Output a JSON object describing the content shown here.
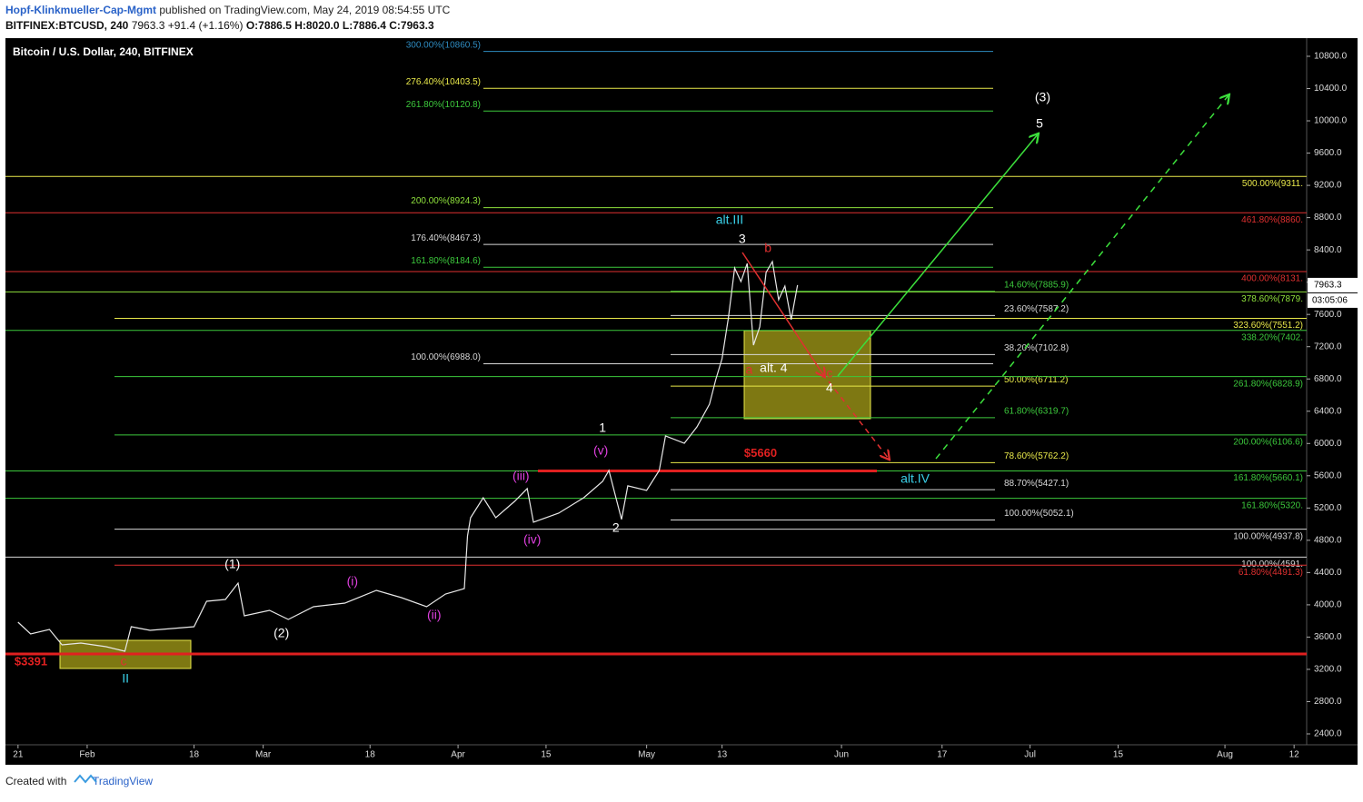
{
  "header": {
    "author": "Hopf-Klinkmueller-Cap-Mgmt",
    "published": "published on TradingView.com, May 24, 2019 08:54:55 UTC",
    "symbol": "BITFINEX:BTCUSD, 240",
    "price": "7963.3",
    "change": "+91.4 (+1.16%)",
    "ohlc": "O:7886.5 H:8020.0 L:7886.4 C:7963.3"
  },
  "footer": {
    "created": "Created with",
    "brand": "TradingView"
  },
  "chart_data": {
    "type": "line",
    "title": "Bitcoin / U.S. Dollar, 240, BITFINEX",
    "color": "#e8e8e8",
    "x": [
      0,
      2,
      5,
      7,
      10,
      14,
      17,
      18,
      21,
      28,
      30,
      33,
      35,
      36,
      40,
      43,
      47,
      52,
      57,
      61,
      65,
      68,
      71,
      71.5,
      72,
      74,
      76,
      79,
      81,
      82,
      86,
      90,
      93,
      94,
      96,
      97,
      100,
      102,
      103,
      106,
      108,
      110,
      111,
      112,
      113,
      114,
      115,
      116,
      117,
      118,
      119,
      120,
      121,
      122,
      123,
      124
    ],
    "values": [
      3785,
      3639,
      3695,
      3503,
      3526,
      3481,
      3425,
      3729,
      3684,
      3729,
      4044,
      4066,
      4269,
      3864,
      3931,
      3819,
      3976,
      4021,
      4179,
      4089,
      3976,
      4134,
      4202,
      4855,
      5080,
      5328,
      5080,
      5283,
      5441,
      5024,
      5136,
      5328,
      5530,
      5665,
      5058,
      5475,
      5418,
      5665,
      6093,
      6003,
      6206,
      6487,
      6791,
      7050,
      7557,
      8176,
      8007,
      8232,
      7219,
      7444,
      8120,
      8255,
      7782,
      7951,
      7534,
      7963.3
    ],
    "xlim": [
      -2,
      205
    ],
    "xticks": [
      {
        "value": 0,
        "label": "21"
      },
      {
        "value": 11,
        "label": "Feb"
      },
      {
        "value": 28,
        "label": "18"
      },
      {
        "value": 39,
        "label": "Mar"
      },
      {
        "value": 56,
        "label": "18"
      },
      {
        "value": 70,
        "label": "Apr"
      },
      {
        "value": 84,
        "label": "15"
      },
      {
        "value": 100,
        "label": "May"
      },
      {
        "value": 112,
        "label": "13"
      },
      {
        "value": 131,
        "label": "Jun"
      },
      {
        "value": 147,
        "label": "17"
      },
      {
        "value": 161,
        "label": "Jul"
      },
      {
        "value": 175,
        "label": "15"
      },
      {
        "value": 192,
        "label": "Aug"
      },
      {
        "value": 203,
        "label": "12"
      }
    ],
    "ylim": [
      2265,
      11025
    ],
    "yticks": [
      {
        "value": 2400,
        "label": "2400.0"
      },
      {
        "value": 2800,
        "label": "2800.0"
      },
      {
        "value": 3200,
        "label": "3200.0"
      },
      {
        "value": 3600,
        "label": "3600.0"
      },
      {
        "value": 4000,
        "label": "4000.0"
      },
      {
        "value": 4400,
        "label": "4400.0"
      },
      {
        "value": 4800,
        "label": "4800.0"
      },
      {
        "value": 5200,
        "label": "5200.0"
      },
      {
        "value": 5600,
        "label": "5600.0"
      },
      {
        "value": 6000,
        "label": "6000.0"
      },
      {
        "value": 6400,
        "label": "6400.0"
      },
      {
        "value": 6800,
        "label": "6800.0"
      },
      {
        "value": 7200,
        "label": "7200.0"
      },
      {
        "value": 7600,
        "label": "7600.0"
      },
      {
        "value": 8000,
        "label": "8000.0"
      },
      {
        "value": 8400,
        "label": "8400.0"
      },
      {
        "value": 8800,
        "label": "8800.0"
      },
      {
        "value": 9200,
        "label": "9200.0"
      },
      {
        "value": 9600,
        "label": "9600.0"
      },
      {
        "value": 10000,
        "label": "10000.0"
      },
      {
        "value": 10400,
        "label": "10400.0"
      },
      {
        "value": 10800,
        "label": "10800.0"
      }
    ],
    "last_label": "7963.3",
    "countdown": "03:05:06",
    "support_lines": [
      {
        "value": 3391,
        "label": "$3391"
      },
      {
        "value": 5660,
        "label": "$5660"
      }
    ],
    "levels_left": [
      {
        "value": 10860.5,
        "label": "300.00%(10860.5)",
        "color": "#2e8bc0"
      },
      {
        "value": 10403.5,
        "label": "276.40%(10403.5)",
        "color": "#e8e84a"
      },
      {
        "value": 10120.8,
        "label": "261.80%(10120.8)",
        "color": "#3cc83c"
      },
      {
        "value": 8924.3,
        "label": "200.00%(8924.3)",
        "color": "#8ee03c"
      },
      {
        "value": 8467.3,
        "label": "176.40%(8467.3)",
        "color": "#d8d8d8"
      },
      {
        "value": 8184.6,
        "label": "161.80%(8184.6)",
        "color": "#3cc83c"
      },
      {
        "value": 6988.0,
        "label": "100.00%(6988.0)",
        "color": "#d8d8d8"
      }
    ],
    "levels_right": [
      {
        "value": 7885.9,
        "label": "14.60%(7885.9)",
        "color": "#3cc83c"
      },
      {
        "value": 7587.2,
        "label": "23.60%(7587.2)",
        "color": "#d8d8d8"
      },
      {
        "value": 7102.8,
        "label": "38.20%(7102.8)",
        "color": "#d8d8d8"
      },
      {
        "value": 6711.2,
        "label": "50.00%(6711.2)",
        "color": "#e8e84a"
      },
      {
        "value": 6319.7,
        "label": "61.80%(6319.7)",
        "color": "#3cc83c"
      },
      {
        "value": 5762.2,
        "label": "78.60%(5762.2)",
        "color": "#e8e84a"
      },
      {
        "value": 5427.1,
        "label": "88.70%(5427.1)",
        "color": "#d8d8d8"
      },
      {
        "value": 5052.1,
        "label": "100.00%(5052.1)",
        "color": "#d8d8d8"
      }
    ],
    "levels_edge": [
      {
        "value": 9311,
        "label": "500.00%(9311.",
        "color": "#e8e84a"
      },
      {
        "value": 8860,
        "label": "461.80%(8860.",
        "color": "#e03030"
      },
      {
        "value": 8131,
        "label": "400.00%(8131.",
        "color": "#e03030"
      },
      {
        "value": 7879,
        "label": "378.60%(7879.",
        "color": "#8ee03c"
      },
      {
        "value": 7551.2,
        "label": "323.60%(7551.2)",
        "color": "#e8e84a"
      },
      {
        "value": 7402,
        "label": "338.20%(7402.",
        "color": "#3cc83c"
      },
      {
        "value": 6828.9,
        "label": "261.80%(6828.9)",
        "color": "#3cc83c"
      },
      {
        "value": 6106.6,
        "label": "200.00%(6106.6)",
        "color": "#3cc83c"
      },
      {
        "value": 5660.1,
        "label": "161.80%(5660.1)",
        "color": "#3cc83c"
      },
      {
        "value": 5320,
        "label": "161.80%(5320.",
        "color": "#3cc83c"
      },
      {
        "value": 4937.8,
        "label": "100.00%(4937.8)",
        "color": "#d8d8d8"
      },
      {
        "value": 4591,
        "label": "100.00%(4591.",
        "color": "#d8d8d8"
      },
      {
        "value": 4491.3,
        "label": "61.80%(4491.3)",
        "color": "#e03030"
      }
    ],
    "annotations": [
      {
        "text": "(3)",
        "x": 163,
        "y": 10282,
        "color": "#ffffff"
      },
      {
        "text": "5",
        "x": 162.5,
        "y": 9956,
        "color": "#ffffff"
      },
      {
        "text": "alt.III",
        "x": 113.2,
        "y": 8762,
        "color": "#3ad0e8"
      },
      {
        "text": "3",
        "x": 115.2,
        "y": 8525,
        "color": "#ffffff"
      },
      {
        "text": "b",
        "x": 119.3,
        "y": 8413,
        "color": "#e03030"
      },
      {
        "text": "a",
        "x": 116.3,
        "y": 6904,
        "color": "#e03030"
      },
      {
        "text": "alt. 4",
        "x": 120.2,
        "y": 6927,
        "color": "#ffffff"
      },
      {
        "text": "c",
        "x": 129.1,
        "y": 6859,
        "color": "#e03030"
      },
      {
        "text": "4",
        "x": 129.1,
        "y": 6679,
        "color": "#ffffff"
      },
      {
        "text": "1",
        "x": 93,
        "y": 6183,
        "color": "#ffffff"
      },
      {
        "text": "(v)",
        "x": 92.7,
        "y": 5902,
        "color": "#e040e0"
      },
      {
        "text": "(iii)",
        "x": 80,
        "y": 5587,
        "color": "#e040e0"
      },
      {
        "text": "alt.IV",
        "x": 142.7,
        "y": 5553,
        "color": "#3ad0e8"
      },
      {
        "text": "2",
        "x": 95.1,
        "y": 4945,
        "color": "#ffffff"
      },
      {
        "text": "(iv)",
        "x": 81.8,
        "y": 4798,
        "color": "#e040e0"
      },
      {
        "text": "(1)",
        "x": 34.1,
        "y": 4494,
        "color": "#ffffff"
      },
      {
        "text": "(i)",
        "x": 53.2,
        "y": 4280,
        "color": "#e040e0"
      },
      {
        "text": "(ii)",
        "x": 66.2,
        "y": 3864,
        "color": "#e040e0"
      },
      {
        "text": "(2)",
        "x": 41.9,
        "y": 3639,
        "color": "#ffffff"
      },
      {
        "text": "c",
        "x": 16.8,
        "y": 3290,
        "color": "#e03030"
      },
      {
        "text": "II",
        "x": 17.1,
        "y": 3076,
        "color": "#3ad0e8"
      }
    ]
  }
}
